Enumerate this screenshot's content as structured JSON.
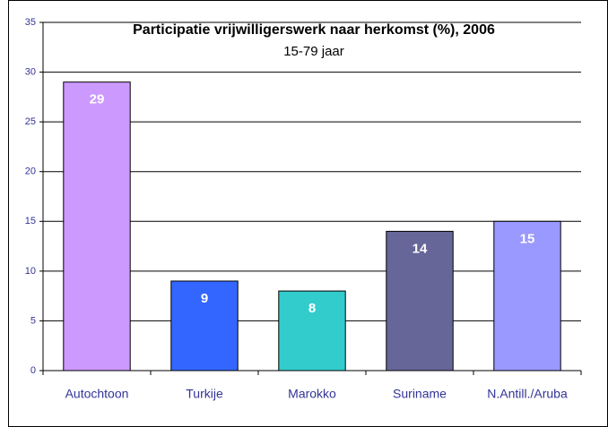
{
  "chart_data": {
    "type": "bar",
    "title": "Participatie vrijwilligerswerk naar herkomst (%), 2006",
    "subtitle": "15-79 jaar",
    "categories": [
      "Autochtoon",
      "Turkije",
      "Marokko",
      "Suriname",
      "N.Antill./Aruba"
    ],
    "values": [
      29,
      9,
      8,
      14,
      15
    ],
    "colors": [
      "#cc99ff",
      "#3366ff",
      "#33cccc",
      "#666699",
      "#9999ff"
    ],
    "ylim": [
      0,
      35
    ],
    "yticks": [
      0,
      5,
      10,
      15,
      20,
      25,
      30,
      35
    ],
    "grid": true
  }
}
